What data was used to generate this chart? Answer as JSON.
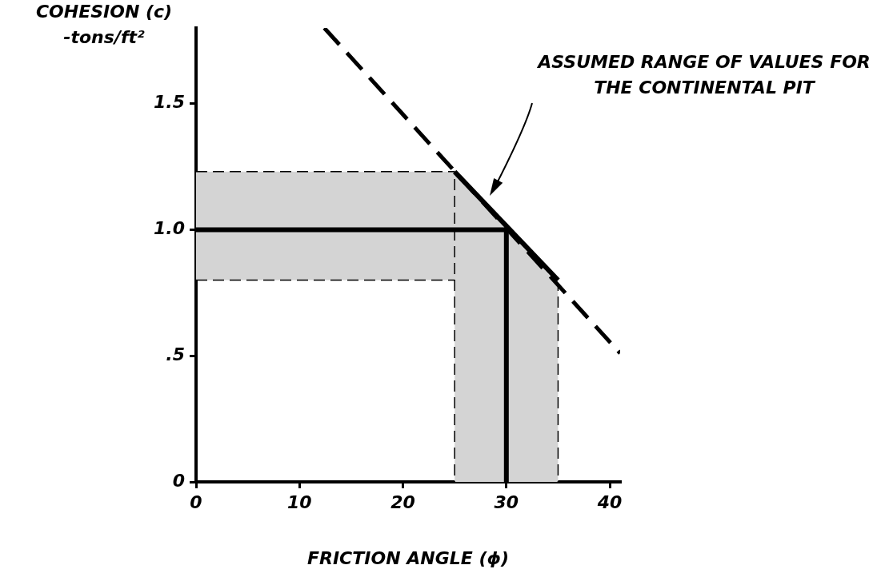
{
  "chart_data": {
    "type": "line",
    "xlabel": "FRICTION ANGLE (ϕ)",
    "ylabel": "COHESION (c) -tons/ft²",
    "xlim": [
      0,
      41
    ],
    "ylim": [
      0,
      1.8
    ],
    "xticks": [
      0,
      10,
      20,
      30,
      40
    ],
    "yticks": [
      0,
      {
        "value": 0.5,
        "label": ".5"
      },
      {
        "value": 1,
        "label": "1.0"
      },
      {
        "value": 1.5,
        "label": "1.5"
      }
    ],
    "series": [
      {
        "color": "#000000",
        "x": [
          12.4,
          41
        ],
        "values": [
          1.8,
          0.51
        ],
        "line_style": "dashed"
      },
      {
        "color": "#000000",
        "x": [
          25,
          35
        ],
        "values": [
          1.23,
          0.8
        ],
        "line_style": "solid"
      },
      {
        "color": "#000000",
        "x": [
          0,
          30,
          30
        ],
        "values": [
          1.0,
          1.0,
          0
        ],
        "line_style": "solid"
      }
    ],
    "bands": [
      {
        "axis": "y",
        "from": 0.8,
        "to": 1.23,
        "color": "#d4d4d4"
      },
      {
        "axis": "x",
        "from": 25,
        "to": 35,
        "color": "#d4d4d4"
      }
    ],
    "annotations": [
      "ASSUMED RANGE OF VALUES FOR THE CONTINENTAL PIT"
    ],
    "grid": false,
    "legend": false,
    "marker": "none"
  }
}
